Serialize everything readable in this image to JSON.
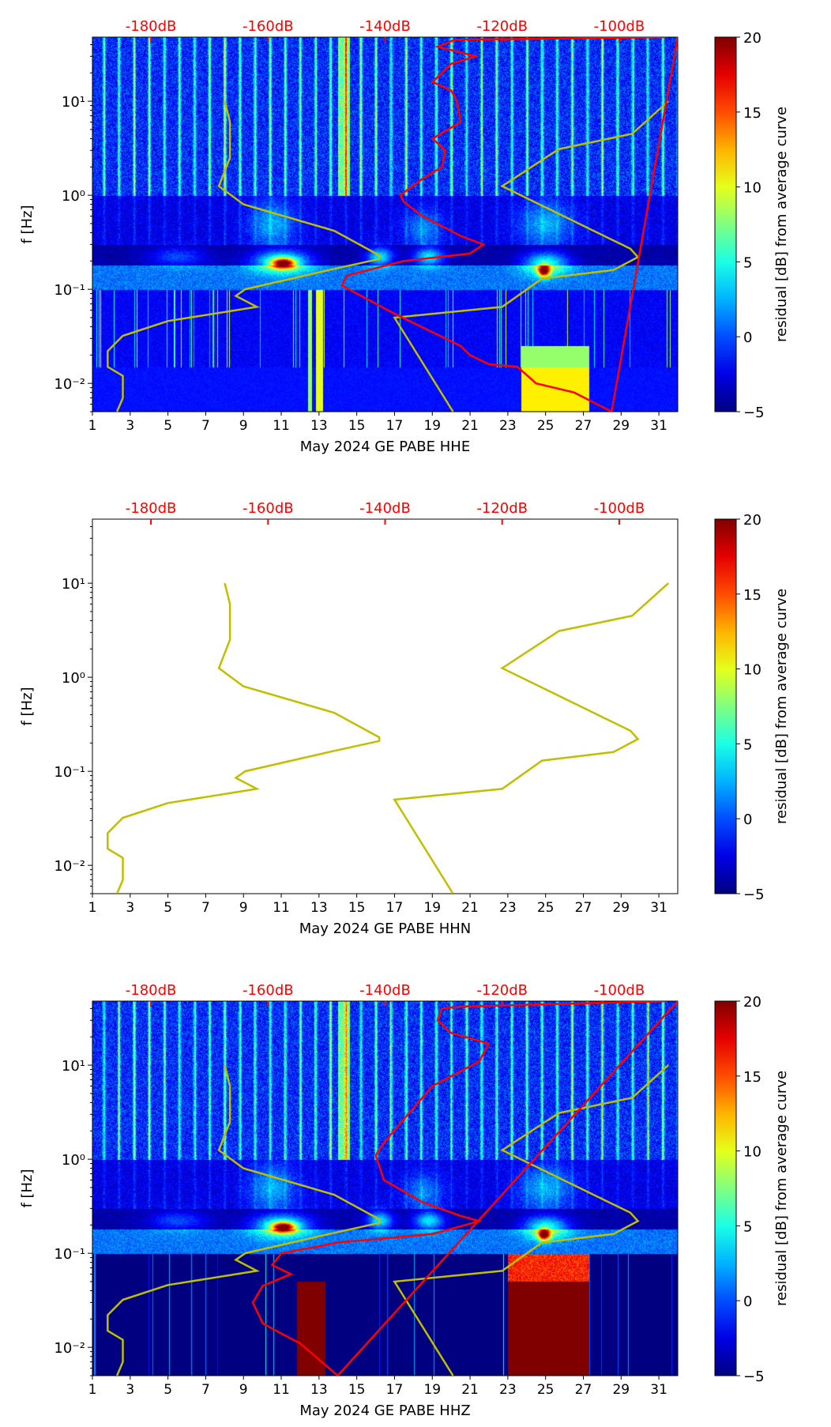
{
  "chart_data": {
    "type": "heatmap",
    "description_kind": "spectrogram residuals with noise model overlays",
    "xlim": [
      1,
      32
    ],
    "xticks": [
      1,
      3,
      5,
      7,
      9,
      11,
      13,
      15,
      17,
      19,
      21,
      23,
      25,
      27,
      29,
      31
    ],
    "ylim_hz": [
      0.005,
      48
    ],
    "yscale": "log",
    "yticks": [
      {
        "value": 0.01,
        "label": "10⁻²"
      },
      {
        "value": 0.1,
        "label": "10⁻¹"
      },
      {
        "value": 1,
        "label": "10⁰"
      },
      {
        "value": 10,
        "label": "10¹"
      }
    ],
    "ylabel": "f [Hz]",
    "top_axis": {
      "ticks_db": [
        -180,
        -160,
        -140,
        -120,
        -100
      ],
      "labels": [
        "-180dB",
        "-160dB",
        "-140dB",
        "-120dB",
        "-100dB"
      ],
      "color": "#ff0000"
    },
    "colorbar": {
      "label": "residual [dB] from average curve",
      "range": [
        -5,
        20
      ],
      "ticks": [
        -5,
        0,
        5,
        10,
        15,
        20
      ],
      "tick_labels": [
        "−5",
        "0",
        "5",
        "10",
        "15",
        "20"
      ],
      "colormap": "jet"
    },
    "noise_models": {
      "color": "#bfbf00",
      "low": [
        [
          -167.4,
          10
        ],
        [
          -166.5,
          6
        ],
        [
          -166.5,
          2.5
        ],
        [
          -168.4,
          1.25
        ],
        [
          -164.2,
          0.8
        ],
        [
          -148.7,
          0.42
        ],
        [
          -141.0,
          0.23
        ],
        [
          -141.0,
          0.21
        ],
        [
          -148.7,
          0.165
        ],
        [
          -163.9,
          0.1
        ],
        [
          -165.5,
          0.085
        ],
        [
          -161.9,
          0.065
        ],
        [
          -177.1,
          0.046
        ],
        [
          -184.8,
          0.032
        ],
        [
          -187.4,
          0.022
        ],
        [
          -187.4,
          0.015
        ],
        [
          -184.8,
          0.012
        ],
        [
          -184.8,
          0.007
        ],
        [
          -185.8,
          0.005
        ]
      ],
      "high": [
        [
          -91.6,
          10
        ],
        [
          -97.8,
          4.5
        ],
        [
          -110.3,
          3.1
        ],
        [
          -120.0,
          1.25
        ],
        [
          -98.1,
          0.27
        ],
        [
          -96.8,
          0.22
        ],
        [
          -101.0,
          0.16
        ],
        [
          -113.2,
          0.13
        ],
        [
          -120.0,
          0.065
        ],
        [
          -138.4,
          0.05
        ],
        [
          -128.4,
          0.005
        ]
      ]
    },
    "panels": [
      {
        "xlabel": "May 2024 GE PABE  HHE",
        "has_spectrogram": true,
        "mode": "HHE",
        "average_curve_color": "#ff0000",
        "average_curve": [
          [
            -92,
            48
          ],
          [
            -128.1,
            45
          ],
          [
            -131.0,
            38
          ],
          [
            -124.5,
            30
          ],
          [
            -128.7,
            25
          ],
          [
            -131.9,
            16
          ],
          [
            -128.7,
            13
          ],
          [
            -127.7,
            10
          ],
          [
            -127.1,
            6
          ],
          [
            -131.9,
            4
          ],
          [
            -129.7,
            3
          ],
          [
            -130.3,
            2
          ],
          [
            -133.6,
            1.5
          ],
          [
            -137.4,
            1.0
          ],
          [
            -136.8,
            0.85
          ],
          [
            -133.6,
            0.6
          ],
          [
            -127.1,
            0.37
          ],
          [
            -123.2,
            0.3
          ],
          [
            -125.5,
            0.24
          ],
          [
            -136.8,
            0.2
          ],
          [
            -146.5,
            0.14
          ],
          [
            -147.4,
            0.11
          ],
          [
            -144.8,
            0.09
          ],
          [
            -138.4,
            0.055
          ],
          [
            -131.9,
            0.035
          ],
          [
            -127.1,
            0.025
          ],
          [
            -125.5,
            0.02
          ],
          [
            -122.3,
            0.016
          ],
          [
            -117.4,
            0.015
          ],
          [
            -114.2,
            0.01
          ],
          [
            -107.7,
            0.008
          ],
          [
            -101.3,
            0.005
          ]
        ]
      },
      {
        "xlabel": "May 2024 GE PABE  HHN",
        "has_spectrogram": false,
        "mode": "HHN",
        "average_curve": []
      },
      {
        "xlabel": "May 2024 GE PABE  HHZ",
        "has_spectrogram": true,
        "mode": "HHZ",
        "average_curve_color": "#ff0000",
        "average_curve": [
          [
            -92,
            48
          ],
          [
            -127.1,
            42
          ],
          [
            -130.3,
            40
          ],
          [
            -131.0,
            30
          ],
          [
            -128.7,
            22
          ],
          [
            -122.3,
            17
          ],
          [
            -123.9,
            11
          ],
          [
            -131.9,
            6
          ],
          [
            -135.2,
            3.5
          ],
          [
            -140.2,
            1.5
          ],
          [
            -141.6,
            1.1
          ],
          [
            -140.2,
            0.6
          ],
          [
            -133.6,
            0.35
          ],
          [
            -127.1,
            0.25
          ],
          [
            -123.9,
            0.22
          ],
          [
            -131.9,
            0.16
          ],
          [
            -148.1,
            0.13
          ],
          [
            -157.7,
            0.1
          ],
          [
            -159.3,
            0.075
          ],
          [
            -156.1,
            0.06
          ],
          [
            -160.9,
            0.045
          ],
          [
            -162.6,
            0.03
          ],
          [
            -160.9,
            0.018
          ],
          [
            -157.7,
            0.014
          ],
          [
            -154.5,
            0.011
          ],
          [
            -148.1,
            0.005
          ]
        ]
      }
    ]
  }
}
